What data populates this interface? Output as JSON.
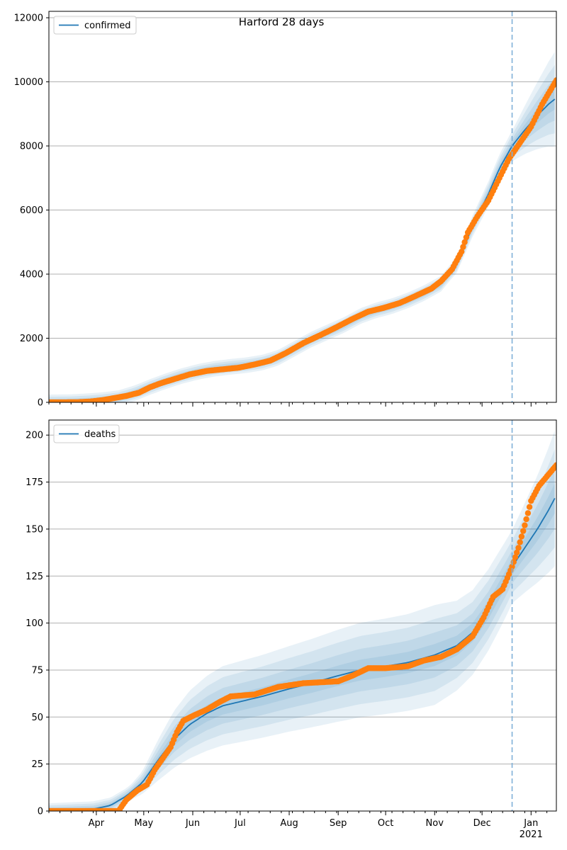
{
  "figure": {
    "title": "Harford 28 days"
  },
  "colors": {
    "model_line": "#1f77b4",
    "observed": "#ff7f0e",
    "band": "#1f77b4",
    "grid": "#b0b0b0",
    "vline": "#7fb0d8"
  },
  "chart_data": [
    {
      "type": "line",
      "panel": "top",
      "legend": {
        "label": "confirmed",
        "position": "top-left"
      },
      "x_range": [
        "2020-03-02",
        "2021-01-17"
      ],
      "ylim": [
        0,
        12200
      ],
      "y_ticks": [
        0,
        2000,
        4000,
        6000,
        8000,
        10000,
        12000
      ],
      "y_tick_labels": [
        "0",
        "2000",
        "4000",
        "6000",
        "8000",
        "10000",
        "12000"
      ],
      "grid": "horizontal",
      "forecast_start": "2020-12-20",
      "model_median": [
        [
          "2020-03-02",
          0
        ],
        [
          "2020-03-15",
          5
        ],
        [
          "2020-03-25",
          30
        ],
        [
          "2020-04-05",
          70
        ],
        [
          "2020-04-15",
          130
        ],
        [
          "2020-04-25",
          280
        ],
        [
          "2020-05-05",
          480
        ],
        [
          "2020-05-15",
          660
        ],
        [
          "2020-05-25",
          820
        ],
        [
          "2020-06-05",
          960
        ],
        [
          "2020-06-15",
          1050
        ],
        [
          "2020-06-25",
          1110
        ],
        [
          "2020-07-05",
          1160
        ],
        [
          "2020-07-15",
          1240
        ],
        [
          "2020-07-25",
          1390
        ],
        [
          "2020-08-05",
          1690
        ],
        [
          "2020-08-15",
          1960
        ],
        [
          "2020-08-25",
          2180
        ],
        [
          "2020-09-05",
          2420
        ],
        [
          "2020-09-15",
          2690
        ],
        [
          "2020-09-25",
          2870
        ],
        [
          "2020-10-05",
          3000
        ],
        [
          "2020-10-15",
          3180
        ],
        [
          "2020-10-25",
          3400
        ],
        [
          "2020-11-05",
          3700
        ],
        [
          "2020-11-15",
          4300
        ],
        [
          "2020-11-25",
          5500
        ],
        [
          "2020-12-05",
          6500
        ],
        [
          "2020-12-12",
          7300
        ],
        [
          "2020-12-20",
          8000
        ],
        [
          "2020-12-28",
          8500
        ],
        [
          "2021-01-05",
          8950
        ],
        [
          "2021-01-12",
          9300
        ],
        [
          "2021-01-17",
          9500
        ]
      ],
      "band_half_widths": [
        [
          "2020-03-02",
          0.1
        ],
        [
          "2020-06-01",
          0.09
        ],
        [
          "2020-10-01",
          0.06
        ],
        [
          "2020-12-20",
          0.06
        ],
        [
          "2021-01-17",
          0.16
        ]
      ],
      "observed": [
        [
          "2020-03-02",
          0
        ],
        [
          "2020-03-20",
          5
        ],
        [
          "2020-03-28",
          25
        ],
        [
          "2020-04-05",
          70
        ],
        [
          "2020-04-12",
          130
        ],
        [
          "2020-04-20",
          200
        ],
        [
          "2020-04-28",
          300
        ],
        [
          "2020-05-05",
          470
        ],
        [
          "2020-05-12",
          600
        ],
        [
          "2020-05-20",
          720
        ],
        [
          "2020-05-30",
          870
        ],
        [
          "2020-06-10",
          980
        ],
        [
          "2020-06-20",
          1030
        ],
        [
          "2020-06-30",
          1080
        ],
        [
          "2020-07-10",
          1180
        ],
        [
          "2020-07-20",
          1300
        ],
        [
          "2020-07-30",
          1540
        ],
        [
          "2020-08-10",
          1850
        ],
        [
          "2020-08-20",
          2080
        ],
        [
          "2020-08-30",
          2320
        ],
        [
          "2020-09-10",
          2600
        ],
        [
          "2020-09-20",
          2830
        ],
        [
          "2020-09-30",
          2950
        ],
        [
          "2020-10-10",
          3100
        ],
        [
          "2020-10-20",
          3320
        ],
        [
          "2020-10-30",
          3550
        ],
        [
          "2020-11-05",
          3780
        ],
        [
          "2020-11-12",
          4150
        ],
        [
          "2020-11-18",
          4700
        ],
        [
          "2020-11-22",
          5300
        ],
        [
          "2020-11-28",
          5800
        ],
        [
          "2020-12-05",
          6300
        ],
        [
          "2020-12-12",
          7000
        ],
        [
          "2020-12-18",
          7600
        ],
        [
          "2020-12-25",
          8100
        ],
        [
          "2021-01-01",
          8600
        ],
        [
          "2021-01-08",
          9300
        ],
        [
          "2021-01-17",
          10050
        ]
      ]
    },
    {
      "type": "line",
      "panel": "bottom",
      "legend": {
        "label": "deaths",
        "position": "top-left"
      },
      "x_range": [
        "2020-03-02",
        "2021-01-17"
      ],
      "ylim": [
        0,
        208
      ],
      "y_ticks": [
        0,
        25,
        50,
        75,
        100,
        125,
        150,
        175,
        200
      ],
      "y_tick_labels": [
        "0",
        "25",
        "50",
        "75",
        "100",
        "125",
        "150",
        "175",
        "200"
      ],
      "x_ticks": [
        "2020-04-01",
        "2020-05-01",
        "2020-06-01",
        "2020-07-01",
        "2020-08-01",
        "2020-09-01",
        "2020-10-01",
        "2020-11-01",
        "2020-12-01",
        "2021-01-01"
      ],
      "x_tick_labels": [
        "Apr",
        "May",
        "Jun",
        "Jul",
        "Aug",
        "Sep",
        "Oct",
        "Nov",
        "Dec",
        "Jan"
      ],
      "x_year_label": "2021",
      "grid": "horizontal",
      "forecast_start": "2020-12-20",
      "model_median": [
        [
          "2020-03-02",
          0
        ],
        [
          "2020-03-30",
          1
        ],
        [
          "2020-04-10",
          3
        ],
        [
          "2020-04-20",
          8
        ],
        [
          "2020-04-30",
          15
        ],
        [
          "2020-05-10",
          27
        ],
        [
          "2020-05-20",
          38
        ],
        [
          "2020-05-30",
          46
        ],
        [
          "2020-06-10",
          52
        ],
        [
          "2020-06-20",
          56
        ],
        [
          "2020-06-30",
          58
        ],
        [
          "2020-07-15",
          61
        ],
        [
          "2020-08-01",
          65
        ],
        [
          "2020-08-15",
          68
        ],
        [
          "2020-09-01",
          72
        ],
        [
          "2020-09-15",
          75
        ],
        [
          "2020-10-01",
          77
        ],
        [
          "2020-10-15",
          79
        ],
        [
          "2020-11-01",
          83
        ],
        [
          "2020-11-15",
          88
        ],
        [
          "2020-11-25",
          95
        ],
        [
          "2020-12-05",
          107
        ],
        [
          "2020-12-15",
          122
        ],
        [
          "2020-12-20",
          130
        ],
        [
          "2020-12-28",
          140
        ],
        [
          "2021-01-05",
          150
        ],
        [
          "2021-01-12",
          160
        ],
        [
          "2021-01-17",
          168
        ]
      ],
      "band_half_widths": [
        [
          "2020-03-02",
          0.4
        ],
        [
          "2020-05-15",
          0.4
        ],
        [
          "2020-08-01",
          0.35
        ],
        [
          "2020-11-01",
          0.32
        ],
        [
          "2020-12-20",
          0.15
        ],
        [
          "2021-01-17",
          0.22
        ]
      ],
      "observed": [
        [
          "2020-03-02",
          0
        ],
        [
          "2020-04-15",
          0
        ],
        [
          "2020-04-20",
          6
        ],
        [
          "2020-04-27",
          11
        ],
        [
          "2020-05-03",
          14
        ],
        [
          "2020-05-08",
          22
        ],
        [
          "2020-05-13",
          28
        ],
        [
          "2020-05-18",
          34
        ],
        [
          "2020-05-22",
          42
        ],
        [
          "2020-05-26",
          48
        ],
        [
          "2020-06-02",
          51
        ],
        [
          "2020-06-10",
          54
        ],
        [
          "2020-06-18",
          58
        ],
        [
          "2020-06-25",
          61
        ],
        [
          "2020-07-10",
          62
        ],
        [
          "2020-07-25",
          66
        ],
        [
          "2020-08-10",
          68
        ],
        [
          "2020-09-01",
          69
        ],
        [
          "2020-09-10",
          72
        ],
        [
          "2020-09-20",
          76
        ],
        [
          "2020-10-01",
          76
        ],
        [
          "2020-10-15",
          77
        ],
        [
          "2020-10-25",
          80
        ],
        [
          "2020-11-05",
          82
        ],
        [
          "2020-11-15",
          86
        ],
        [
          "2020-11-25",
          93
        ],
        [
          "2020-12-02",
          103
        ],
        [
          "2020-12-08",
          114
        ],
        [
          "2020-12-14",
          118
        ],
        [
          "2020-12-20",
          130
        ],
        [
          "2020-12-24",
          140
        ],
        [
          "2020-12-28",
          152
        ],
        [
          "2021-01-01",
          165
        ],
        [
          "2021-01-06",
          173
        ],
        [
          "2021-01-11",
          178
        ],
        [
          "2021-01-17",
          184
        ]
      ]
    }
  ]
}
